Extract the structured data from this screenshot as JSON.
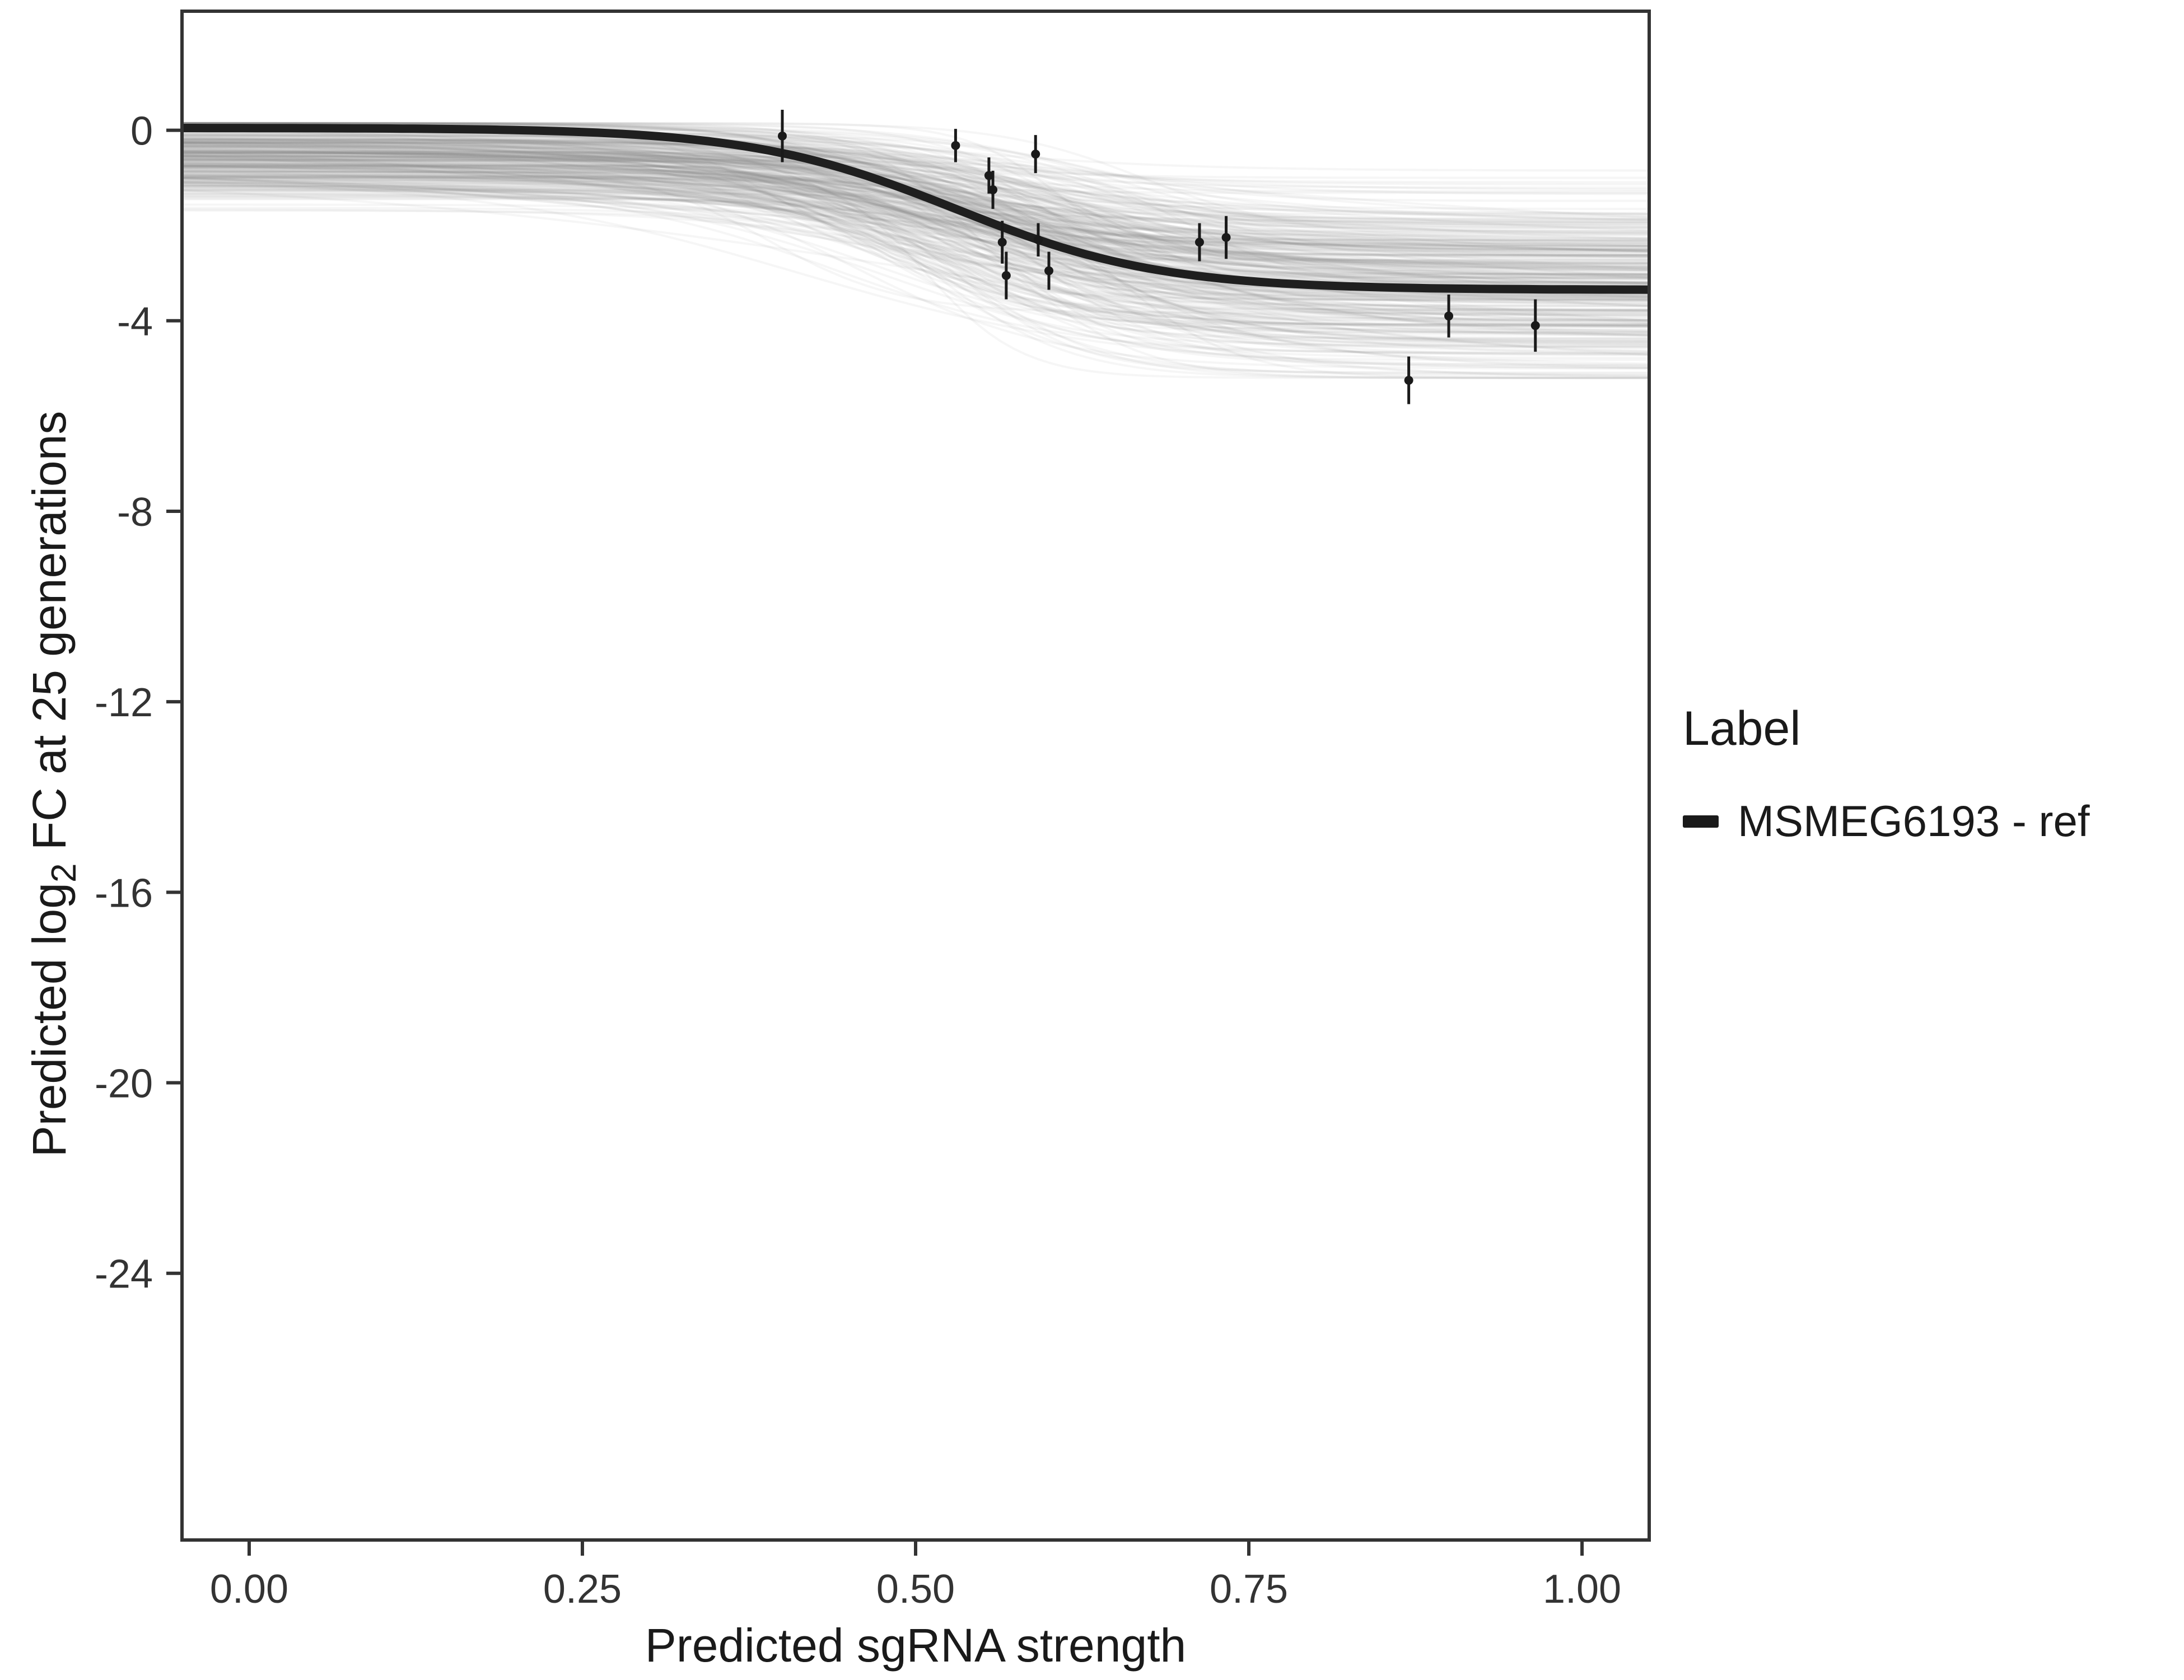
{
  "chart_data": {
    "type": "line",
    "title": "",
    "xlabel": "Predicted sgRNA strength",
    "ylabel": {
      "prefix": "Predicted  log",
      "sub": "2",
      "suffix": " FC at 25 generations"
    },
    "x_domain": [
      -0.0504,
      1.0504
    ],
    "y_domain": [
      2.5,
      -29.6
    ],
    "x_ticks": [
      0,
      0.25,
      0.5,
      0.75,
      1
    ],
    "x_tick_labels": [
      "0.00",
      "0.25",
      "0.50",
      "0.75",
      "1.00"
    ],
    "y_ticks": [
      0,
      -4,
      -8,
      -12,
      -16,
      -20,
      -24
    ],
    "y_tick_labels": [
      "0",
      "-4",
      "-8",
      "-12",
      "-16",
      "-20",
      "-24"
    ],
    "grid": false,
    "panel_border_color": "#333333",
    "mean_curve": {
      "top": 0.05,
      "drop": 3.4,
      "midpoint": 0.53,
      "slope": 13,
      "color": "#1f1f1f",
      "width": 15
    },
    "ensemble": {
      "count": 330,
      "color": "#808080",
      "alpha": 0.07,
      "line_width": 4,
      "seed": 42,
      "top_mean": -0.55,
      "top_sd": 0.5,
      "drop_mean": 2.7,
      "drop_sd": 0.85,
      "mid_mean": 0.54,
      "mid_sd": 0.06,
      "slope_mean": 14,
      "slope_sd": 5
    },
    "points": [
      {
        "x": 0.4,
        "y": -0.12,
        "err": 0.55
      },
      {
        "x": 0.53,
        "y": -0.32,
        "err": 0.35
      },
      {
        "x": 0.555,
        "y": -0.95,
        "err": 0.38
      },
      {
        "x": 0.558,
        "y": -1.25,
        "err": 0.4
      },
      {
        "x": 0.565,
        "y": -2.35,
        "err": 0.45
      },
      {
        "x": 0.568,
        "y": -3.05,
        "err": 0.5
      },
      {
        "x": 0.59,
        "y": -0.5,
        "err": 0.4
      },
      {
        "x": 0.592,
        "y": -2.3,
        "err": 0.35
      },
      {
        "x": 0.6,
        "y": -2.95,
        "err": 0.4
      },
      {
        "x": 0.713,
        "y": -2.35,
        "err": 0.4
      },
      {
        "x": 0.733,
        "y": -2.25,
        "err": 0.45
      },
      {
        "x": 0.87,
        "y": -5.25,
        "err": 0.5
      },
      {
        "x": 0.9,
        "y": -3.9,
        "err": 0.45
      },
      {
        "x": 0.965,
        "y": -4.1,
        "err": 0.55
      }
    ],
    "point_color": "#1a1a1a",
    "legend": {
      "title": "Label",
      "entries": [
        {
          "label": "MSMEG6193 - ref",
          "color": "#1a1a1a"
        }
      ]
    }
  }
}
